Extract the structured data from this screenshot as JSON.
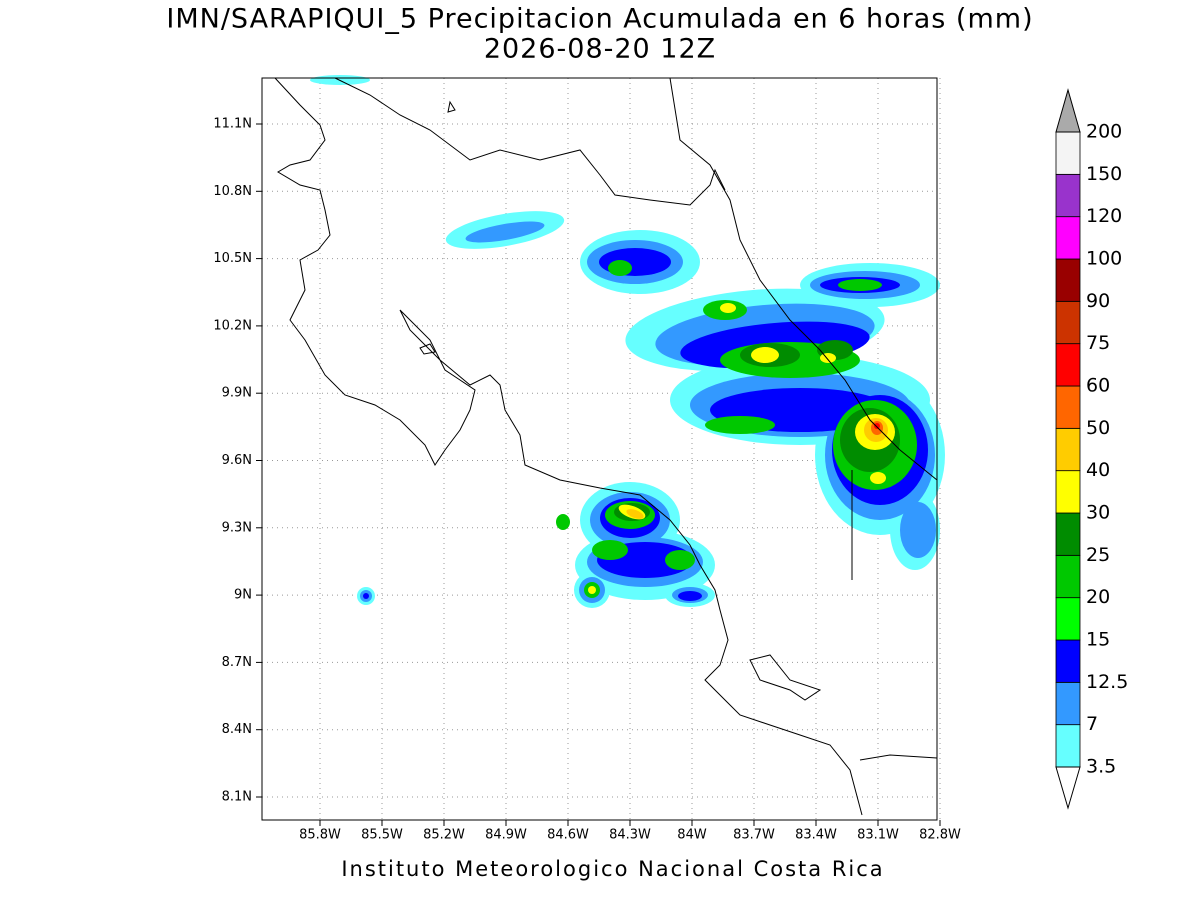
{
  "header": {
    "title": "IMN/SARAPIQUI_5 Precipitacion Acumulada en 6 horas (mm)",
    "subtitle": "2026-08-20 12Z"
  },
  "map": {
    "lon_ticks": [
      "85.8W",
      "85.5W",
      "85.2W",
      "84.9W",
      "84.6W",
      "84.3W",
      "84W",
      "83.7W",
      "83.4W",
      "83.1W",
      "82.8W"
    ],
    "lat_ticks": [
      "11.1N",
      "10.8N",
      "10.5N",
      "10.2N",
      "9.9N",
      "9.6N",
      "9.3N",
      "9N",
      "8.7N",
      "8.4N",
      "8.1N"
    ]
  },
  "colorbar": {
    "levels": [
      3.5,
      7,
      12.5,
      15,
      20,
      25,
      30,
      40,
      50,
      60,
      75,
      90,
      100,
      120,
      150,
      200
    ],
    "colors": [
      "#66ffff",
      "#3399ff",
      "#0000ff",
      "#00ff00",
      "#00c800",
      "#008c00",
      "#ffff00",
      "#ffcc00",
      "#ff6600",
      "#ff0000",
      "#cc3300",
      "#990000",
      "#ff00ff",
      "#9933cc",
      "#f4f4f4"
    ],
    "under_color": "#ffffff",
    "over_color": "#aaaaaa"
  },
  "footer": "Instituto Meteorologico Nacional Costa Rica"
}
